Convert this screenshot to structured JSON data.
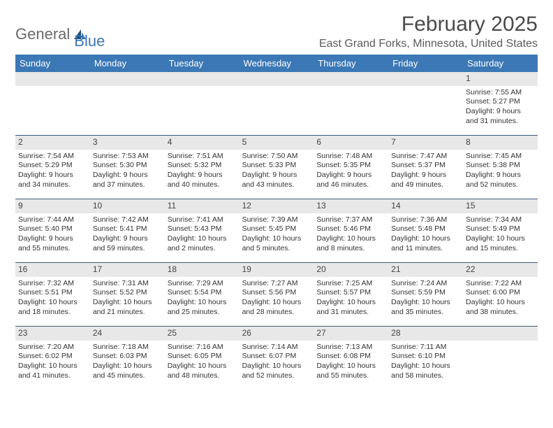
{
  "logo": {
    "text1": "General",
    "text2": "Blue"
  },
  "title": "February 2025",
  "location": "East Grand Forks, Minnesota, United States",
  "colors": {
    "header_bg": "#3b78b5",
    "header_text": "#ffffff",
    "daynum_bg": "#e8e8e8",
    "week_border": "#3b5a7a",
    "title_color": "#4a4a4a",
    "location_color": "#5a5a5a",
    "logo_general": "#6a6a6a",
    "logo_blue": "#3b78b5",
    "body_text": "#333333",
    "background": "#ffffff"
  },
  "typography": {
    "title_fontsize": 30,
    "location_fontsize": 16,
    "header_fontsize": 13,
    "daynum_fontsize": 12,
    "cell_fontsize": 10.5,
    "logo_fontsize": 22
  },
  "weekdays": [
    "Sunday",
    "Monday",
    "Tuesday",
    "Wednesday",
    "Thursday",
    "Friday",
    "Saturday"
  ],
  "weeks": [
    [
      {
        "day": "",
        "lines": []
      },
      {
        "day": "",
        "lines": []
      },
      {
        "day": "",
        "lines": []
      },
      {
        "day": "",
        "lines": []
      },
      {
        "day": "",
        "lines": []
      },
      {
        "day": "",
        "lines": []
      },
      {
        "day": "1",
        "lines": [
          "Sunrise: 7:55 AM",
          "Sunset: 5:27 PM",
          "Daylight: 9 hours",
          "and 31 minutes."
        ]
      }
    ],
    [
      {
        "day": "2",
        "lines": [
          "Sunrise: 7:54 AM",
          "Sunset: 5:29 PM",
          "Daylight: 9 hours",
          "and 34 minutes."
        ]
      },
      {
        "day": "3",
        "lines": [
          "Sunrise: 7:53 AM",
          "Sunset: 5:30 PM",
          "Daylight: 9 hours",
          "and 37 minutes."
        ]
      },
      {
        "day": "4",
        "lines": [
          "Sunrise: 7:51 AM",
          "Sunset: 5:32 PM",
          "Daylight: 9 hours",
          "and 40 minutes."
        ]
      },
      {
        "day": "5",
        "lines": [
          "Sunrise: 7:50 AM",
          "Sunset: 5:33 PM",
          "Daylight: 9 hours",
          "and 43 minutes."
        ]
      },
      {
        "day": "6",
        "lines": [
          "Sunrise: 7:48 AM",
          "Sunset: 5:35 PM",
          "Daylight: 9 hours",
          "and 46 minutes."
        ]
      },
      {
        "day": "7",
        "lines": [
          "Sunrise: 7:47 AM",
          "Sunset: 5:37 PM",
          "Daylight: 9 hours",
          "and 49 minutes."
        ]
      },
      {
        "day": "8",
        "lines": [
          "Sunrise: 7:45 AM",
          "Sunset: 5:38 PM",
          "Daylight: 9 hours",
          "and 52 minutes."
        ]
      }
    ],
    [
      {
        "day": "9",
        "lines": [
          "Sunrise: 7:44 AM",
          "Sunset: 5:40 PM",
          "Daylight: 9 hours",
          "and 55 minutes."
        ]
      },
      {
        "day": "10",
        "lines": [
          "Sunrise: 7:42 AM",
          "Sunset: 5:41 PM",
          "Daylight: 9 hours",
          "and 59 minutes."
        ]
      },
      {
        "day": "11",
        "lines": [
          "Sunrise: 7:41 AM",
          "Sunset: 5:43 PM",
          "Daylight: 10 hours",
          "and 2 minutes."
        ]
      },
      {
        "day": "12",
        "lines": [
          "Sunrise: 7:39 AM",
          "Sunset: 5:45 PM",
          "Daylight: 10 hours",
          "and 5 minutes."
        ]
      },
      {
        "day": "13",
        "lines": [
          "Sunrise: 7:37 AM",
          "Sunset: 5:46 PM",
          "Daylight: 10 hours",
          "and 8 minutes."
        ]
      },
      {
        "day": "14",
        "lines": [
          "Sunrise: 7:36 AM",
          "Sunset: 5:48 PM",
          "Daylight: 10 hours",
          "and 11 minutes."
        ]
      },
      {
        "day": "15",
        "lines": [
          "Sunrise: 7:34 AM",
          "Sunset: 5:49 PM",
          "Daylight: 10 hours",
          "and 15 minutes."
        ]
      }
    ],
    [
      {
        "day": "16",
        "lines": [
          "Sunrise: 7:32 AM",
          "Sunset: 5:51 PM",
          "Daylight: 10 hours",
          "and 18 minutes."
        ]
      },
      {
        "day": "17",
        "lines": [
          "Sunrise: 7:31 AM",
          "Sunset: 5:52 PM",
          "Daylight: 10 hours",
          "and 21 minutes."
        ]
      },
      {
        "day": "18",
        "lines": [
          "Sunrise: 7:29 AM",
          "Sunset: 5:54 PM",
          "Daylight: 10 hours",
          "and 25 minutes."
        ]
      },
      {
        "day": "19",
        "lines": [
          "Sunrise: 7:27 AM",
          "Sunset: 5:56 PM",
          "Daylight: 10 hours",
          "and 28 minutes."
        ]
      },
      {
        "day": "20",
        "lines": [
          "Sunrise: 7:25 AM",
          "Sunset: 5:57 PM",
          "Daylight: 10 hours",
          "and 31 minutes."
        ]
      },
      {
        "day": "21",
        "lines": [
          "Sunrise: 7:24 AM",
          "Sunset: 5:59 PM",
          "Daylight: 10 hours",
          "and 35 minutes."
        ]
      },
      {
        "day": "22",
        "lines": [
          "Sunrise: 7:22 AM",
          "Sunset: 6:00 PM",
          "Daylight: 10 hours",
          "and 38 minutes."
        ]
      }
    ],
    [
      {
        "day": "23",
        "lines": [
          "Sunrise: 7:20 AM",
          "Sunset: 6:02 PM",
          "Daylight: 10 hours",
          "and 41 minutes."
        ]
      },
      {
        "day": "24",
        "lines": [
          "Sunrise: 7:18 AM",
          "Sunset: 6:03 PM",
          "Daylight: 10 hours",
          "and 45 minutes."
        ]
      },
      {
        "day": "25",
        "lines": [
          "Sunrise: 7:16 AM",
          "Sunset: 6:05 PM",
          "Daylight: 10 hours",
          "and 48 minutes."
        ]
      },
      {
        "day": "26",
        "lines": [
          "Sunrise: 7:14 AM",
          "Sunset: 6:07 PM",
          "Daylight: 10 hours",
          "and 52 minutes."
        ]
      },
      {
        "day": "27",
        "lines": [
          "Sunrise: 7:13 AM",
          "Sunset: 6:08 PM",
          "Daylight: 10 hours",
          "and 55 minutes."
        ]
      },
      {
        "day": "28",
        "lines": [
          "Sunrise: 7:11 AM",
          "Sunset: 6:10 PM",
          "Daylight: 10 hours",
          "and 58 minutes."
        ]
      },
      {
        "day": "",
        "lines": []
      }
    ]
  ]
}
